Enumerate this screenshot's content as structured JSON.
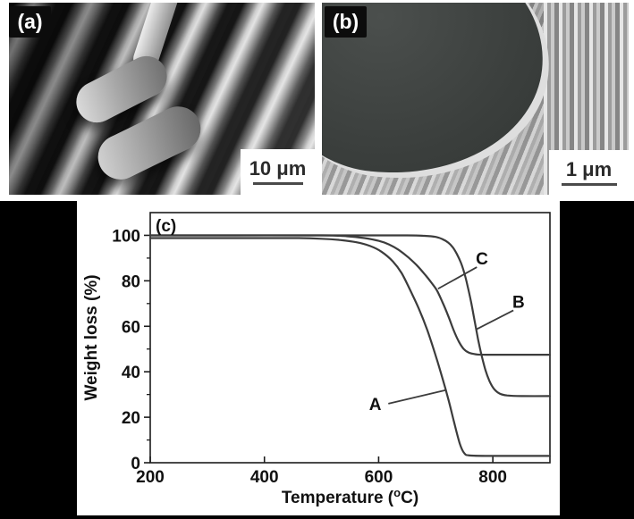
{
  "sem_panels": {
    "a": {
      "label": "(a)",
      "scale_bar": "10 μm"
    },
    "b": {
      "label": "(b)",
      "scale_bar": "1 μm"
    }
  },
  "chart_data": {
    "type": "line",
    "panel_label": "(c)",
    "xlabel_parts": {
      "pre": "Temperature (",
      "degree": "o",
      "post": "C)"
    },
    "ylabel": "Weight loss (%)",
    "xlim": [
      200,
      900
    ],
    "ylim": [
      0,
      110
    ],
    "xticks": [
      200,
      400,
      600,
      800
    ],
    "yticks": [
      0,
      20,
      40,
      60,
      80,
      100
    ],
    "yticks_minor": [
      10,
      30,
      50,
      70,
      90
    ],
    "grid": false,
    "legend_position": "none",
    "line_color": "#3c3c3c",
    "axis_color": "#1c1c1c",
    "series": [
      {
        "name": "A",
        "points": [
          [
            200,
            98.8
          ],
          [
            300,
            98.8
          ],
          [
            400,
            98.8
          ],
          [
            460,
            98.8
          ],
          [
            500,
            98.5
          ],
          [
            530,
            98
          ],
          [
            560,
            97
          ],
          [
            585,
            95.3
          ],
          [
            605,
            92.8
          ],
          [
            625,
            88.5
          ],
          [
            640,
            83.5
          ],
          [
            655,
            76
          ],
          [
            670,
            68
          ],
          [
            685,
            58.5
          ],
          [
            700,
            47
          ],
          [
            712,
            37
          ],
          [
            722,
            28
          ],
          [
            732,
            18
          ],
          [
            742,
            8.5
          ],
          [
            750,
            4.2
          ],
          [
            760,
            3.2
          ],
          [
            800,
            3
          ],
          [
            900,
            3
          ]
        ]
      },
      {
        "name": "B",
        "points": [
          [
            200,
            100
          ],
          [
            400,
            100
          ],
          [
            550,
            100
          ],
          [
            650,
            100
          ],
          [
            680,
            99.8
          ],
          [
            700,
            99.3
          ],
          [
            712,
            98.3
          ],
          [
            722,
            96.8
          ],
          [
            730,
            94.7
          ],
          [
            737,
            91.8
          ],
          [
            744,
            88
          ],
          [
            750,
            83.5
          ],
          [
            756,
            77.5
          ],
          [
            762,
            70.5
          ],
          [
            768,
            62.5
          ],
          [
            774,
            54.5
          ],
          [
            780,
            47.5
          ],
          [
            787,
            40.8
          ],
          [
            794,
            36
          ],
          [
            802,
            32.5
          ],
          [
            812,
            30.4
          ],
          [
            825,
            29.6
          ],
          [
            850,
            29.3
          ],
          [
            900,
            29.3
          ]
        ]
      },
      {
        "name": "C",
        "points": [
          [
            200,
            100
          ],
          [
            350,
            100
          ],
          [
            500,
            100
          ],
          [
            545,
            99.6
          ],
          [
            575,
            98.8
          ],
          [
            600,
            97.6
          ],
          [
            618,
            96
          ],
          [
            635,
            93.6
          ],
          [
            652,
            90.3
          ],
          [
            668,
            86.5
          ],
          [
            682,
            82.5
          ],
          [
            693,
            79
          ],
          [
            702,
            75.8
          ],
          [
            712,
            70.5
          ],
          [
            722,
            64.5
          ],
          [
            731,
            58.5
          ],
          [
            740,
            53.5
          ],
          [
            749,
            50
          ],
          [
            758,
            48.4
          ],
          [
            770,
            47.7
          ],
          [
            790,
            47.5
          ],
          [
            900,
            47.5
          ]
        ]
      }
    ],
    "annotations": [
      {
        "text": "A",
        "tx": 594,
        "ty": 26,
        "line": [
          617,
          26,
          719,
          32
        ]
      },
      {
        "text": "B",
        "tx": 845,
        "ty": 71,
        "line": [
          836,
          67,
          770,
          58.5
        ]
      },
      {
        "text": "C",
        "tx": 781,
        "ty": 90,
        "line": [
          772,
          86,
          704,
          76.5
        ]
      }
    ]
  }
}
